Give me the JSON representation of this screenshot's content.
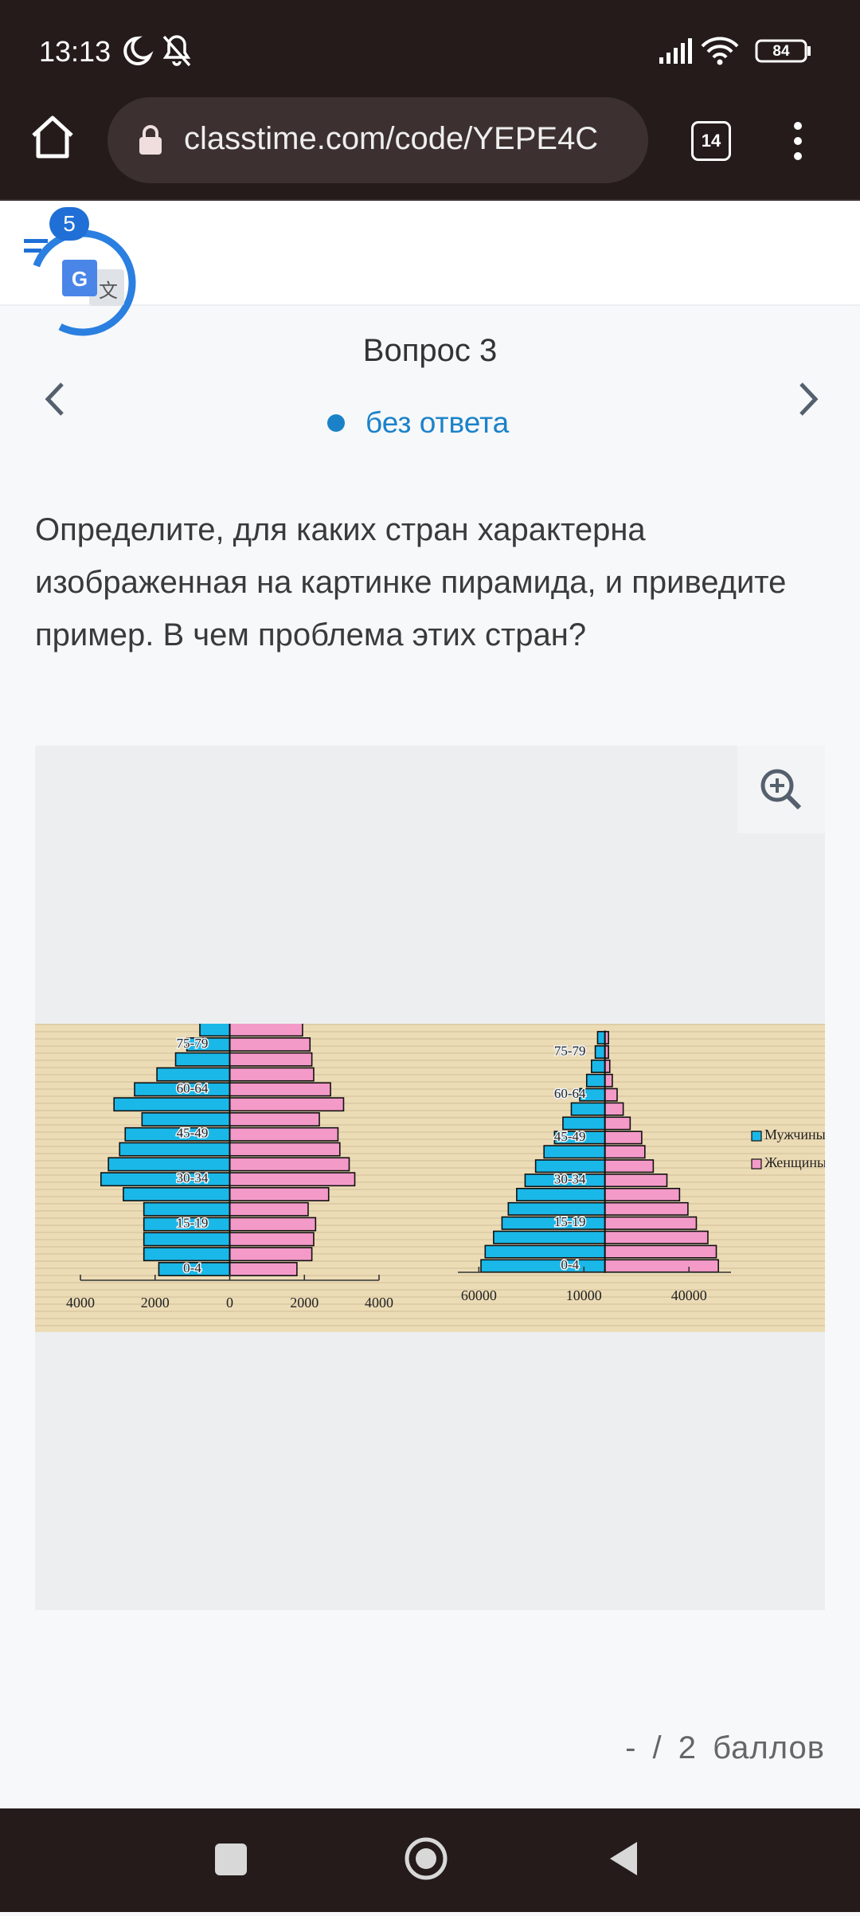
{
  "status_bar": {
    "time": "13:13",
    "battery": "84"
  },
  "browser": {
    "url": "classtime.com/code/YEPE4C",
    "tabs": "14",
    "badge": "5"
  },
  "question": {
    "title": "Вопрос 3",
    "status": "без ответа",
    "text": "Определите, для каких стран характерна изображенная на картинке пирамида, и приведите пример. В чем проблема этих стран?"
  },
  "chart_data": [
    {
      "type": "bar",
      "categories": [
        "0-4",
        null,
        null,
        "15-19",
        null,
        null,
        "30-34",
        null,
        null,
        "45-49",
        null,
        null,
        "60-64",
        null,
        null,
        "75-79",
        null
      ],
      "series": [
        {
          "color": "#1ab8e8",
          "values": [
            -1900,
            -2300,
            -2300,
            -2300,
            -2300,
            -2850,
            -3450,
            -3250,
            -2950,
            -2800,
            -2350,
            -3100,
            -2550,
            -1950,
            -1450,
            -1150,
            -800
          ]
        },
        {
          "color": "#f49ac8",
          "values": [
            1800,
            2200,
            2250,
            2300,
            2100,
            2650,
            3350,
            3200,
            2950,
            2900,
            2400,
            3050,
            2700,
            2250,
            2200,
            2150,
            1950
          ]
        }
      ],
      "xlim": [
        -4000,
        4000
      ],
      "xticks": [
        {
          "value": -4000,
          "label": "4000"
        },
        {
          "value": -2000,
          "label": "2000"
        },
        0,
        2000,
        4000
      ]
    },
    {
      "type": "bar",
      "categories": [
        "0-4",
        null,
        null,
        "15-19",
        null,
        null,
        "30-34",
        null,
        null,
        "45-49",
        null,
        null,
        "60-64",
        null,
        null,
        "75-79",
        null
      ],
      "series": [
        {
          "name": "Мужчины",
          "color": "#1ab8e8",
          "values": [
            -59000,
            -57000,
            -53000,
            -49000,
            -46000,
            -42000,
            -38000,
            -33000,
            -29000,
            -24000,
            -20000,
            -16000,
            -12000,
            -8700,
            -6400,
            -4600,
            -3500
          ]
        },
        {
          "name": "Женщины",
          "color": "#f49ac8",
          "values": [
            54000,
            53000,
            49000,
            43500,
            39500,
            35500,
            29500,
            23000,
            19000,
            17500,
            12000,
            8700,
            5800,
            3500,
            2300,
            1700,
            1700
          ]
        }
      ],
      "xlim": [
        -70000,
        60000
      ],
      "xticks": [
        {
          "value": -60000,
          "label": "60000"
        },
        {
          "value": -10000,
          "label": "10000"
        },
        40000
      ],
      "legend": "right"
    }
  ],
  "score": "- / 2 баллов"
}
